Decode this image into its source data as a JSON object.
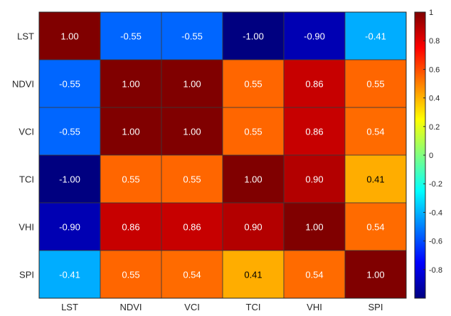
{
  "chart_data": {
    "type": "heatmap",
    "rows": [
      "LST",
      "NDVI",
      "VCI",
      "TCI",
      "VHI",
      "SPI"
    ],
    "columns": [
      "LST",
      "NDVI",
      "VCI",
      "TCI",
      "VHI",
      "SPI"
    ],
    "values": [
      [
        1.0,
        -0.55,
        -0.55,
        -1.0,
        -0.9,
        -0.41
      ],
      [
        -0.55,
        1.0,
        1.0,
        0.55,
        0.86,
        0.55
      ],
      [
        -0.55,
        1.0,
        1.0,
        0.55,
        0.86,
        0.54
      ],
      [
        -1.0,
        0.55,
        0.55,
        1.0,
        0.9,
        0.41
      ],
      [
        -0.9,
        0.86,
        0.86,
        0.9,
        1.0,
        0.54
      ],
      [
        -0.41,
        0.55,
        0.54,
        0.41,
        0.54,
        1.0
      ]
    ],
    "value_labels": [
      [
        "1.00",
        "-0.55",
        "-0.55",
        "-1.00",
        "-0.90",
        "-0.41"
      ],
      [
        "-0.55",
        "1.00",
        "1.00",
        "0.55",
        "0.86",
        "0.55"
      ],
      [
        "-0.55",
        "1.00",
        "1.00",
        "0.55",
        "0.86",
        "0.54"
      ],
      [
        "-1.00",
        "0.55",
        "0.55",
        "1.00",
        "0.90",
        "0.41"
      ],
      [
        "-0.90",
        "0.86",
        "0.86",
        "0.90",
        "1.00",
        "0.54"
      ],
      [
        "-0.41",
        "0.55",
        "0.54",
        "0.41",
        "0.54",
        "1.00"
      ]
    ],
    "colormap": "jet",
    "clim": [
      -1,
      1
    ],
    "colorbar": {
      "ticks": [
        -0.8,
        -0.6,
        -0.4,
        -0.2,
        0,
        0.2,
        0.4,
        0.6,
        0.8,
        1
      ],
      "tick_labels": [
        "-0.8",
        "-0.6",
        "-0.4",
        "-0.2",
        "0",
        "0.2",
        "0.4",
        "0.6",
        "0.8",
        "1"
      ],
      "position": "right"
    },
    "title": "",
    "xlabel": "",
    "ylabel": ""
  }
}
